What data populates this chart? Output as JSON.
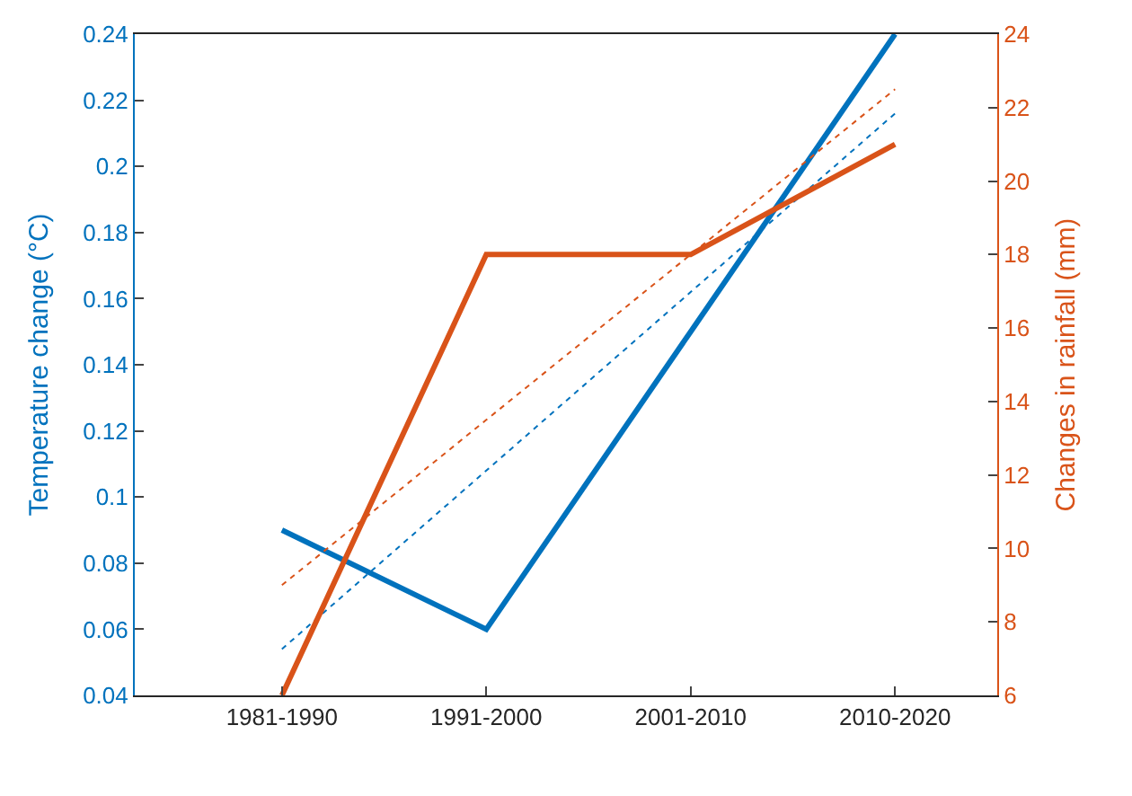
{
  "chart_data": {
    "type": "line",
    "ylabel": "Temperature change (°C)",
    "y2label": "Changes in rainfall (mm)",
    "categories": [
      "1981-1990",
      "1991-2000",
      "2001-2010",
      "2010-2020"
    ],
    "series": [
      {
        "color": "#0072bd",
        "values": [
          0.09,
          0.06,
          0.15,
          0.24
        ],
        "line_style": "solid"
      },
      {
        "color": "#d95319",
        "values": [
          6,
          18,
          18,
          21
        ],
        "axis": "y2",
        "line_style": "solid"
      },
      {
        "color": "#0072bd",
        "values": [
          0.054,
          0.108,
          0.162,
          0.216
        ],
        "line_style": "dotted"
      },
      {
        "color": "#d95319",
        "values": [
          9,
          13.5,
          18,
          22.5
        ],
        "axis": "y2",
        "line_style": "dotted"
      }
    ],
    "ylim": [
      0.04,
      0.24
    ],
    "yticks": [
      0.04,
      0.06,
      0.08,
      0.1,
      0.12,
      0.14,
      0.16,
      0.18,
      0.2,
      0.22,
      0.24
    ],
    "y2lim": [
      6,
      24
    ],
    "y2ticks": [
      6,
      8,
      10,
      12,
      14,
      16,
      18,
      20,
      22,
      24
    ],
    "marker": "none"
  }
}
